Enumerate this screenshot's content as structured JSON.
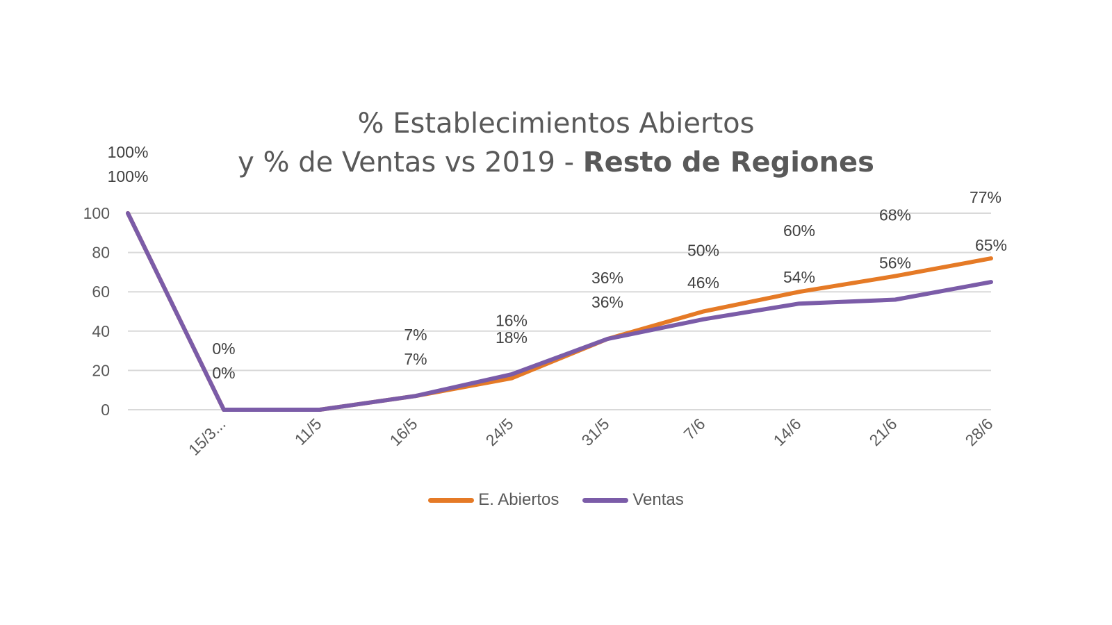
{
  "chart_data": {
    "type": "line",
    "title_line1": "% Establecimientos Abiertos",
    "title_line2_normal": "y % de Ventas vs 2019 - ",
    "title_line2_bold": "Resto de Regiones",
    "categories": [
      "",
      "15/3...",
      "11/5",
      "16/5",
      "24/5",
      "31/5",
      "7/6",
      "14/6",
      "21/6",
      "28/6"
    ],
    "ylim": [
      0,
      100
    ],
    "yticks": [
      "0",
      "20",
      "40",
      "60",
      "80",
      "100"
    ],
    "grid": true,
    "legend_position": "bottom",
    "series": [
      {
        "name": "E. Abiertos",
        "color": "#E57A26",
        "values": [
          100,
          0,
          0,
          7,
          16,
          36,
          50,
          60,
          68,
          77
        ],
        "labels": [
          "100%",
          "0%",
          "",
          "7%",
          "16%",
          "36%",
          "50%",
          "60%",
          "68%",
          "77%"
        ]
      },
      {
        "name": "Ventas",
        "color": "#7B5CA8",
        "values": [
          100,
          0,
          0,
          7,
          18,
          36,
          46,
          54,
          56,
          65
        ],
        "labels": [
          "100%",
          "0%",
          "",
          "7%",
          "18%",
          "36%",
          "46%",
          "54%",
          "56%",
          "65%"
        ]
      }
    ]
  }
}
